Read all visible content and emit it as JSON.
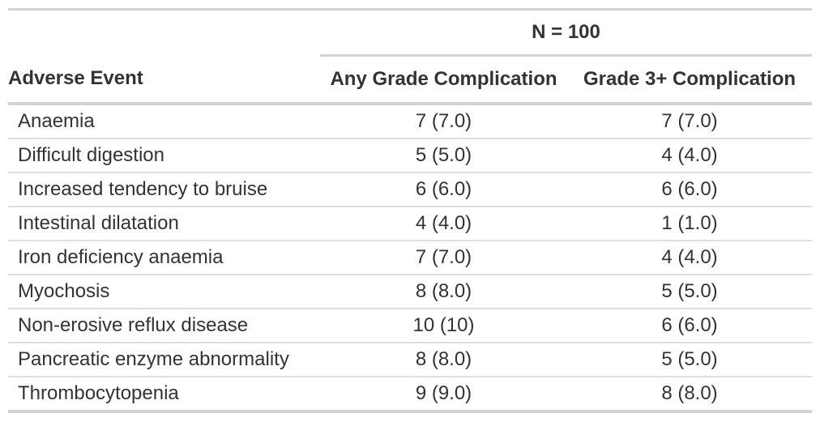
{
  "chart_data": {
    "type": "table",
    "spanner_label": "N = 100",
    "spanner_spans": [
      "Any Grade Complication",
      "Grade 3+ Complication"
    ],
    "columns": [
      "Adverse Event",
      "Any Grade Complication",
      "Grade 3+ Complication"
    ],
    "rows": [
      [
        "Anaemia",
        "7 (7.0)",
        "7 (7.0)"
      ],
      [
        "Difficult digestion",
        "5 (5.0)",
        "4 (4.0)"
      ],
      [
        "Increased tendency to bruise",
        "6 (6.0)",
        "6 (6.0)"
      ],
      [
        "Intestinal dilatation",
        "4 (4.0)",
        "1 (1.0)"
      ],
      [
        "Iron deficiency anaemia",
        "7 (7.0)",
        "4 (4.0)"
      ],
      [
        "Myochosis",
        "8 (8.0)",
        "5 (5.0)"
      ],
      [
        "Non-erosive reflux disease",
        "10 (10)",
        "6 (6.0)"
      ],
      [
        "Pancreatic enzyme abnormality",
        "8 (8.0)",
        "5 (5.0)"
      ],
      [
        "Thrombocytopenia",
        "9 (9.0)",
        "8 (8.0)"
      ]
    ],
    "layout": {
      "value_alignment": "center",
      "event_alignment": "left",
      "grid": "horizontal-rules-only"
    }
  },
  "colors": {
    "heavy_border": "#d3d3d3",
    "row_divider": "#dfdfdf",
    "text": "#333333",
    "background": "#ffffff"
  }
}
